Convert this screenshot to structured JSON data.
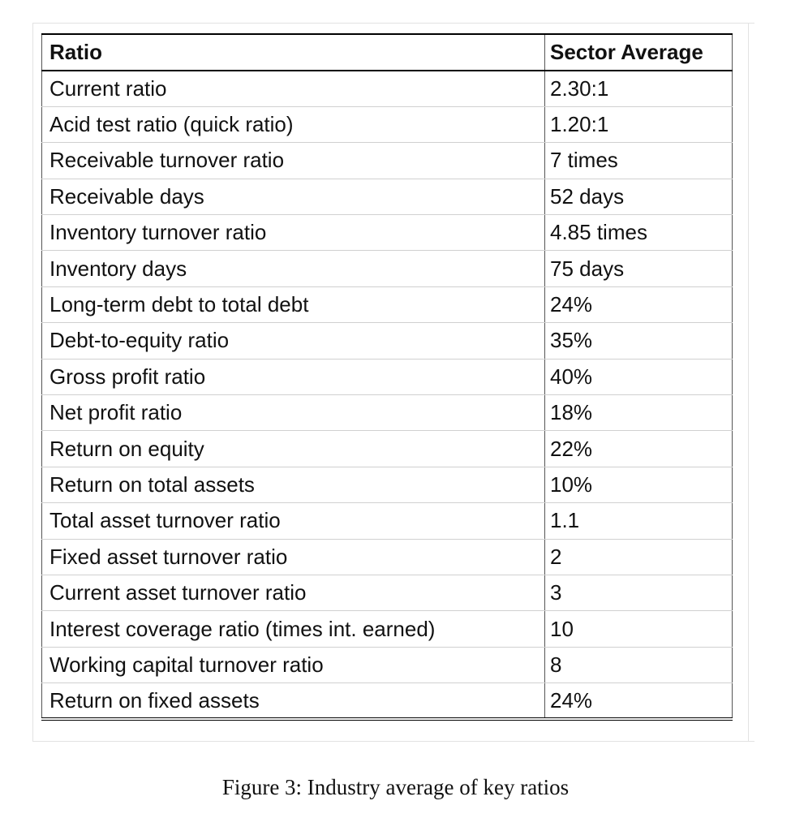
{
  "table": {
    "headers": [
      "Ratio",
      "Sector Average"
    ],
    "rows": [
      [
        "Current ratio",
        "2.30:1"
      ],
      [
        "Acid test ratio (quick ratio)",
        "1.20:1"
      ],
      [
        "Receivable turnover ratio",
        "7 times"
      ],
      [
        "Receivable days",
        "52 days"
      ],
      [
        "Inventory turnover ratio",
        "4.85 times"
      ],
      [
        "Inventory days",
        "75 days"
      ],
      [
        "Long-term debt to total debt",
        "24%"
      ],
      [
        "Debt-to-equity ratio",
        "35%"
      ],
      [
        "Gross profit ratio",
        "40%"
      ],
      [
        "Net profit ratio",
        "18%"
      ],
      [
        "Return on equity",
        "22%"
      ],
      [
        "Return on total assets",
        "10%"
      ],
      [
        "Total asset turnover ratio",
        "1.1"
      ],
      [
        "Fixed asset turnover ratio",
        "2"
      ],
      [
        "Current asset turnover ratio",
        "3"
      ],
      [
        "Interest coverage ratio (times int. earned)",
        "10"
      ],
      [
        "Working capital turnover ratio",
        "8"
      ],
      [
        "Return on fixed assets",
        "24%"
      ]
    ]
  },
  "caption": "Figure 3: Industry average of key ratios"
}
